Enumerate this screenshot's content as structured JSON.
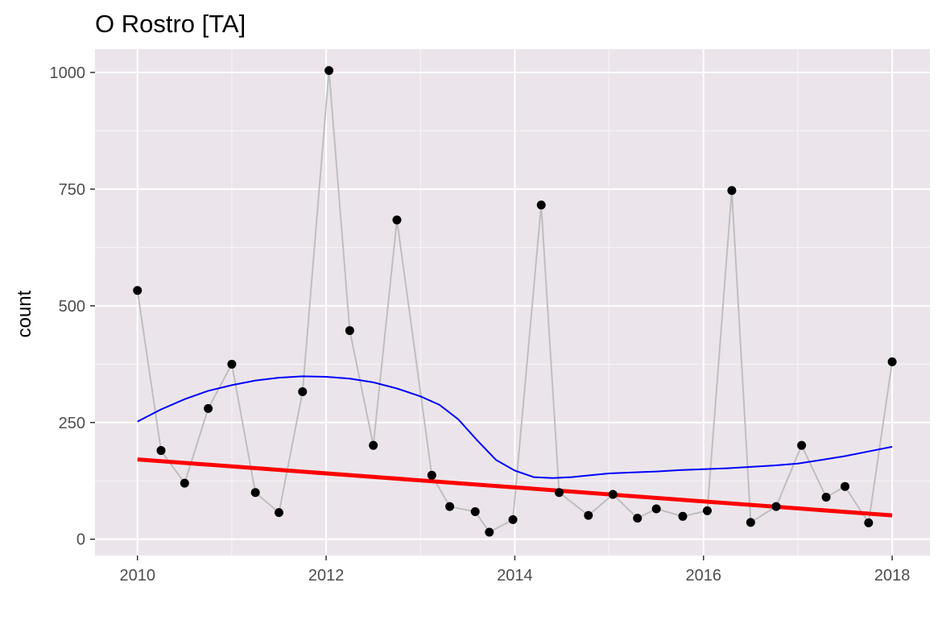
{
  "chart_data": {
    "type": "line",
    "title": "O Rostro  [TA]",
    "xlabel": "",
    "ylabel": "count",
    "xlim": [
      2009.55,
      2018.4
    ],
    "ylim": [
      -35,
      1050
    ],
    "x_ticks": [
      2010,
      2012,
      2014,
      2016,
      2018
    ],
    "x_tick_labels": [
      "2010",
      "2012",
      "2014",
      "2016",
      "2018"
    ],
    "y_ticks": [
      0,
      250,
      500,
      750,
      1000
    ],
    "y_tick_labels": [
      "0",
      "250",
      "500",
      "750",
      "1000"
    ],
    "grid": true,
    "legend": "none",
    "colors": {
      "panel": "#EBE5EB",
      "grid_major": "#FFFFFF",
      "observed_line": "#BEBEBE",
      "points": "#000000",
      "smooth": "#0000FF",
      "trend": "#FF0000"
    },
    "series": [
      {
        "kind": "observed",
        "x": [
          2010.0,
          2010.25,
          2010.5,
          2010.75,
          2011.0,
          2011.25,
          2011.5,
          2011.75,
          2012.03,
          2012.25,
          2012.5,
          2012.75,
          2013.12,
          2013.31,
          2013.58,
          2013.73,
          2013.98,
          2014.28,
          2014.47,
          2014.78,
          2015.04,
          2015.3,
          2015.5,
          2015.78,
          2016.04,
          2016.3,
          2016.5,
          2016.77,
          2017.04,
          2017.3,
          2017.5,
          2017.75,
          2018.0
        ],
        "y": [
          533,
          190,
          120,
          280,
          375,
          100,
          57,
          316,
          1004,
          447,
          201,
          684,
          137,
          70,
          59,
          15,
          42,
          716,
          100,
          51,
          96,
          45,
          65,
          49,
          61,
          747,
          36,
          70,
          201,
          90,
          113,
          35,
          380
        ]
      },
      {
        "kind": "smooth",
        "x": [
          2010.0,
          2010.25,
          2010.5,
          2010.75,
          2011.0,
          2011.25,
          2011.5,
          2011.75,
          2012.0,
          2012.25,
          2012.5,
          2012.75,
          2013.0,
          2013.2,
          2013.4,
          2013.6,
          2013.8,
          2014.0,
          2014.2,
          2014.4,
          2014.6,
          2014.8,
          2015.0,
          2015.25,
          2015.5,
          2015.75,
          2016.0,
          2016.25,
          2016.5,
          2016.75,
          2017.0,
          2017.25,
          2017.5,
          2017.75,
          2018.0
        ],
        "y": [
          252,
          278,
          300,
          318,
          330,
          340,
          346,
          349,
          348,
          344,
          336,
          323,
          306,
          288,
          257,
          212,
          170,
          147,
          133,
          131,
          133,
          137,
          141,
          143,
          145,
          148,
          150,
          152,
          155,
          158,
          162,
          170,
          178,
          188,
          198
        ]
      },
      {
        "kind": "trend",
        "x": [
          2010.0,
          2018.0
        ],
        "y": [
          171,
          51
        ]
      }
    ]
  }
}
